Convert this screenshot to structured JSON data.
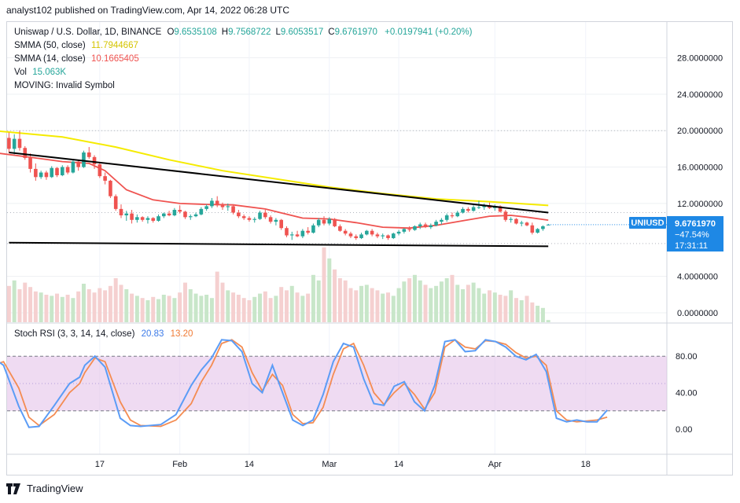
{
  "header": {
    "text": "analyst102 published on TradingView.com, Apr 14, 2022 06:28 UTC"
  },
  "legend": {
    "symbol": "Uniswap / U.S. Dollar, 1D, BINANCE",
    "ohlc": [
      {
        "label": "O",
        "value": "9.6535108"
      },
      {
        "label": "H",
        "value": "9.7568722"
      },
      {
        "label": "L",
        "value": "9.6053517"
      },
      {
        "label": "C",
        "value": "9.6761970"
      }
    ],
    "change": "+0.0197941 (+0.20%)",
    "change_color": "#26a69a",
    "smma50_label": "SMMA (50, close)",
    "smma50_value": "11.7944667",
    "smma50_color": "#f0e000",
    "smma14_label": "SMMA (14, close)",
    "smma14_value": "10.1665405",
    "smma14_color": "#ef5350",
    "vol_label": "Vol",
    "vol_value": "15.063K",
    "vol_color": "#26a69a",
    "moving_label": "MOVING: Invalid Symbol"
  },
  "price_badge": {
    "symbol": "UNIUSD",
    "price": "9.6761970",
    "pct": "−47.54%",
    "countdown": "17:31:11",
    "color": "#1e88e5"
  },
  "stoch": {
    "label": "Stoch RSI (3, 3, 14, 14, close)",
    "k_value": "20.83",
    "d_value": "13.20",
    "k_color": "#5b9cf6",
    "d_color": "#f48c52"
  },
  "footer": {
    "brand": "TradingView"
  },
  "chart_data": {
    "type": "candlestick",
    "price_axis_ticks": [
      "28.0000000",
      "24.0000000",
      "20.0000000",
      "16.0000000",
      "12.0000000",
      "4.0000000",
      "0.0000000"
    ],
    "price_axis_values": [
      28,
      24,
      20,
      16,
      12,
      4,
      0
    ],
    "stoch_axis_ticks": [
      "80.00",
      "40.00",
      "0.00"
    ],
    "stoch_axis_values": [
      80,
      40,
      0
    ],
    "x_ticks": [
      "17",
      "Feb",
      "14",
      "Mar",
      "14",
      "Apr",
      "18"
    ],
    "x_tick_days": [
      17,
      32,
      45,
      60,
      73,
      91,
      108
    ],
    "ohlc": [
      [
        0,
        19.2,
        19.8,
        17.6,
        18.0
      ],
      [
        1,
        18.0,
        19.6,
        17.4,
        19.1
      ],
      [
        2,
        19.1,
        20.0,
        17.8,
        18.1
      ],
      [
        3,
        18.1,
        18.3,
        16.8,
        17.0
      ],
      [
        4,
        17.0,
        17.5,
        15.4,
        15.8
      ],
      [
        5,
        15.8,
        16.4,
        14.5,
        14.9
      ],
      [
        6,
        14.9,
        15.6,
        14.7,
        15.4
      ],
      [
        7,
        15.4,
        15.6,
        14.6,
        14.9
      ],
      [
        8,
        14.9,
        16.1,
        14.8,
        15.9
      ],
      [
        9,
        15.9,
        16.0,
        14.9,
        15.1
      ],
      [
        10,
        15.1,
        16.2,
        15.0,
        16.0
      ],
      [
        11,
        16.0,
        16.2,
        15.2,
        15.4
      ],
      [
        12,
        15.4,
        16.8,
        15.3,
        16.6
      ],
      [
        13,
        16.6,
        16.8,
        15.6,
        16.0
      ],
      [
        14,
        16.0,
        17.8,
        15.9,
        17.6
      ],
      [
        15,
        17.6,
        18.2,
        16.9,
        17.1
      ],
      [
        16,
        17.1,
        17.3,
        15.8,
        16.3
      ],
      [
        17,
        16.3,
        16.5,
        14.8,
        15.0
      ],
      [
        18,
        15.0,
        15.4,
        14.1,
        14.5
      ],
      [
        19,
        14.5,
        14.6,
        12.6,
        12.8
      ],
      [
        20,
        12.8,
        13.0,
        11.2,
        11.4
      ],
      [
        21,
        11.4,
        11.9,
        10.4,
        10.7
      ],
      [
        22,
        10.7,
        11.2,
        10.1,
        10.9
      ],
      [
        23,
        10.9,
        11.3,
        9.8,
        10.2
      ],
      [
        24,
        10.2,
        10.8,
        9.9,
        10.5
      ],
      [
        25,
        10.5,
        10.6,
        10.0,
        10.2
      ],
      [
        26,
        10.2,
        10.6,
        9.8,
        10.4
      ],
      [
        27,
        10.4,
        10.5,
        9.9,
        10.1
      ],
      [
        28,
        10.1,
        10.8,
        10.0,
        10.6
      ],
      [
        29,
        10.6,
        11.0,
        10.4,
        10.9
      ],
      [
        30,
        10.9,
        11.2,
        10.6,
        10.7
      ],
      [
        31,
        10.7,
        11.5,
        10.6,
        11.3
      ],
      [
        32,
        11.3,
        11.8,
        10.9,
        11.1
      ],
      [
        33,
        11.1,
        11.2,
        10.3,
        10.5
      ],
      [
        34,
        10.5,
        10.8,
        10.2,
        10.6
      ],
      [
        35,
        10.6,
        11.0,
        10.5,
        10.8
      ],
      [
        36,
        10.8,
        11.6,
        10.7,
        11.4
      ],
      [
        37,
        11.4,
        11.9,
        11.2,
        11.7
      ],
      [
        38,
        11.7,
        12.6,
        11.5,
        12.3
      ],
      [
        39,
        12.3,
        12.8,
        11.6,
        11.8
      ],
      [
        40,
        11.8,
        12.1,
        11.3,
        11.6
      ],
      [
        41,
        11.6,
        12.0,
        11.2,
        11.7
      ],
      [
        42,
        11.7,
        11.9,
        10.8,
        11.0
      ],
      [
        43,
        11.0,
        11.3,
        10.4,
        10.6
      ],
      [
        44,
        10.6,
        10.8,
        10.2,
        10.4
      ],
      [
        45,
        10.4,
        10.6,
        10.0,
        10.2
      ],
      [
        46,
        10.2,
        10.5,
        9.9,
        10.3
      ],
      [
        47,
        10.3,
        11.2,
        10.2,
        11.0
      ],
      [
        48,
        11.0,
        11.3,
        10.3,
        10.5
      ],
      [
        49,
        10.5,
        10.7,
        9.8,
        10.0
      ],
      [
        50,
        10.0,
        10.4,
        9.6,
        10.2
      ],
      [
        51,
        10.2,
        10.3,
        9.1,
        9.3
      ],
      [
        52,
        9.3,
        9.5,
        8.3,
        8.5
      ],
      [
        53,
        8.5,
        8.9,
        8.0,
        8.6
      ],
      [
        54,
        8.6,
        9.0,
        8.3,
        8.4
      ],
      [
        55,
        8.4,
        9.2,
        8.2,
        9.0
      ],
      [
        56,
        9.0,
        9.4,
        8.6,
        8.8
      ],
      [
        57,
        8.8,
        9.8,
        8.7,
        9.6
      ],
      [
        58,
        9.6,
        10.4,
        9.4,
        10.2
      ],
      [
        59,
        10.2,
        10.6,
        9.6,
        9.8
      ],
      [
        60,
        9.8,
        10.5,
        9.6,
        10.3
      ],
      [
        61,
        10.3,
        10.4,
        9.4,
        9.5
      ],
      [
        62,
        9.5,
        9.7,
        8.9,
        9.0
      ],
      [
        63,
        9.0,
        9.2,
        8.5,
        8.7
      ],
      [
        64,
        8.7,
        8.9,
        8.2,
        8.4
      ],
      [
        65,
        8.4,
        8.6,
        8.0,
        8.2
      ],
      [
        66,
        8.2,
        8.8,
        8.1,
        8.6
      ],
      [
        67,
        8.6,
        9.1,
        8.5,
        9.0
      ],
      [
        68,
        9.0,
        9.2,
        8.4,
        8.6
      ],
      [
        69,
        8.6,
        8.8,
        8.2,
        8.4
      ],
      [
        70,
        8.4,
        8.7,
        8.1,
        8.5
      ],
      [
        71,
        8.5,
        8.6,
        8.0,
        8.2
      ],
      [
        72,
        8.2,
        8.8,
        8.1,
        8.7
      ],
      [
        73,
        8.7,
        9.1,
        8.5,
        8.9
      ],
      [
        74,
        8.9,
        9.3,
        8.7,
        9.2
      ],
      [
        75,
        9.2,
        9.5,
        8.9,
        9.1
      ],
      [
        76,
        9.1,
        9.6,
        9.0,
        9.5
      ],
      [
        77,
        9.5,
        9.9,
        9.2,
        9.7
      ],
      [
        78,
        9.7,
        9.9,
        9.3,
        9.4
      ],
      [
        79,
        9.4,
        9.8,
        9.2,
        9.6
      ],
      [
        80,
        9.6,
        10.2,
        9.5,
        10.0
      ],
      [
        81,
        10.0,
        10.4,
        9.7,
        10.2
      ],
      [
        82,
        10.2,
        10.9,
        10.0,
        10.7
      ],
      [
        83,
        10.7,
        11.0,
        10.4,
        10.6
      ],
      [
        84,
        10.6,
        11.2,
        10.5,
        11.0
      ],
      [
        85,
        11.0,
        11.6,
        10.9,
        11.4
      ],
      [
        86,
        11.4,
        11.6,
        11.0,
        11.2
      ],
      [
        87,
        11.2,
        11.8,
        11.1,
        11.6
      ],
      [
        88,
        11.6,
        12.3,
        11.4,
        11.6
      ],
      [
        89,
        11.6,
        12.0,
        11.3,
        11.8
      ],
      [
        90,
        11.8,
        12.1,
        11.4,
        11.5
      ],
      [
        91,
        11.5,
        11.9,
        11.2,
        11.7
      ],
      [
        92,
        11.7,
        11.8,
        11.0,
        11.1
      ],
      [
        93,
        11.1,
        11.3,
        10.0,
        10.2
      ],
      [
        94,
        10.2,
        10.5,
        9.9,
        10.3
      ],
      [
        95,
        10.3,
        10.4,
        9.7,
        9.8
      ],
      [
        96,
        9.8,
        10.1,
        9.5,
        9.9
      ],
      [
        97,
        9.9,
        10.0,
        9.5,
        9.6
      ],
      [
        98,
        9.6,
        9.9,
        8.6,
        8.8
      ],
      [
        99,
        8.8,
        9.3,
        8.7,
        9.2
      ],
      [
        100,
        9.2,
        9.6,
        9.0,
        9.5
      ],
      [
        101,
        9.65,
        9.76,
        9.61,
        9.68
      ]
    ],
    "volume": [
      33,
      38,
      30,
      36,
      32,
      28,
      27,
      25,
      24,
      26,
      23,
      25,
      22,
      28,
      35,
      30,
      27,
      31,
      29,
      33,
      40,
      34,
      30,
      26,
      24,
      22,
      20,
      23,
      21,
      25,
      24,
      22,
      27,
      36,
      30,
      26,
      24,
      25,
      22,
      46,
      36,
      29,
      27,
      25,
      22,
      20,
      23,
      26,
      28,
      22,
      24,
      32,
      29,
      33,
      27,
      24,
      26,
      43,
      38,
      68,
      58,
      48,
      40,
      38,
      31,
      29,
      33,
      34,
      31,
      29,
      26,
      27,
      24,
      31,
      37,
      40,
      43,
      38,
      34,
      31,
      33,
      37,
      40,
      43,
      34,
      30,
      34,
      36,
      31,
      26,
      29,
      27,
      25,
      24,
      29,
      22,
      20,
      24,
      18,
      15,
      13,
      2
    ],
    "smma50": [
      [
        -3,
        20.0
      ],
      [
        10,
        19.3
      ],
      [
        20,
        18.2
      ],
      [
        30,
        16.8
      ],
      [
        40,
        15.6
      ],
      [
        50,
        14.7
      ],
      [
        60,
        13.8
      ],
      [
        70,
        13.1
      ],
      [
        80,
        12.5
      ],
      [
        90,
        12.2
      ],
      [
        101,
        11.79
      ]
    ],
    "smma14": [
      [
        -3,
        17.6
      ],
      [
        5,
        17.0
      ],
      [
        10,
        16.6
      ],
      [
        15,
        16.4
      ],
      [
        18,
        15.6
      ],
      [
        22,
        13.5
      ],
      [
        27,
        12.4
      ],
      [
        32,
        12.0
      ],
      [
        37,
        11.9
      ],
      [
        42,
        11.85
      ],
      [
        48,
        11.4
      ],
      [
        55,
        10.4
      ],
      [
        60,
        10.3
      ],
      [
        65,
        9.9
      ],
      [
        70,
        9.4
      ],
      [
        75,
        9.3
      ],
      [
        80,
        9.6
      ],
      [
        85,
        10.1
      ],
      [
        90,
        10.6
      ],
      [
        94,
        10.7
      ],
      [
        97,
        10.5
      ],
      [
        101,
        10.17
      ]
    ],
    "trendline_upper": [
      [
        0,
        17.6
      ],
      [
        101,
        11.0
      ]
    ],
    "trendline_lower": [
      [
        0,
        7.7
      ],
      [
        101,
        7.3
      ]
    ],
    "stoch_k": [
      [
        -3,
        78
      ],
      [
        -1,
        70
      ],
      [
        2,
        25
      ],
      [
        4,
        2
      ],
      [
        6,
        3
      ],
      [
        9,
        26
      ],
      [
        12,
        50
      ],
      [
        14,
        57
      ],
      [
        15,
        70
      ],
      [
        17,
        80
      ],
      [
        19,
        68
      ],
      [
        22,
        12
      ],
      [
        24,
        4
      ],
      [
        26,
        3
      ],
      [
        30,
        5
      ],
      [
        33,
        16
      ],
      [
        36,
        48
      ],
      [
        38,
        65
      ],
      [
        40,
        78
      ],
      [
        42,
        98
      ],
      [
        44,
        97
      ],
      [
        46,
        85
      ],
      [
        48,
        50
      ],
      [
        50,
        40
      ],
      [
        52,
        70
      ],
      [
        54,
        40
      ],
      [
        56,
        10
      ],
      [
        58,
        4
      ],
      [
        60,
        10
      ],
      [
        62,
        38
      ],
      [
        64,
        74
      ],
      [
        66,
        94
      ],
      [
        68,
        90
      ],
      [
        70,
        55
      ],
      [
        72,
        28
      ],
      [
        74,
        26
      ],
      [
        76,
        47
      ],
      [
        78,
        52
      ],
      [
        80,
        30
      ],
      [
        82,
        20
      ],
      [
        84,
        48
      ],
      [
        86,
        96
      ],
      [
        88,
        98
      ],
      [
        90,
        85
      ],
      [
        92,
        86
      ],
      [
        94,
        98
      ],
      [
        96,
        96
      ],
      [
        98,
        90
      ],
      [
        100,
        80
      ],
      [
        102,
        76
      ],
      [
        104,
        82
      ],
      [
        106,
        63
      ],
      [
        108,
        12
      ],
      [
        110,
        8
      ],
      [
        112,
        10
      ],
      [
        114,
        8
      ],
      [
        116,
        8
      ],
      [
        118,
        20.83
      ]
    ],
    "stoch_d": [
      [
        -3,
        70
      ],
      [
        -1,
        74
      ],
      [
        2,
        45
      ],
      [
        4,
        13
      ],
      [
        6,
        4
      ],
      [
        9,
        16
      ],
      [
        12,
        40
      ],
      [
        14,
        50
      ],
      [
        15,
        62
      ],
      [
        17,
        78
      ],
      [
        19,
        74
      ],
      [
        22,
        30
      ],
      [
        24,
        10
      ],
      [
        26,
        4
      ],
      [
        30,
        3
      ],
      [
        33,
        10
      ],
      [
        36,
        28
      ],
      [
        38,
        52
      ],
      [
        40,
        70
      ],
      [
        42,
        94
      ],
      [
        44,
        98
      ],
      [
        46,
        90
      ],
      [
        48,
        62
      ],
      [
        50,
        42
      ],
      [
        52,
        60
      ],
      [
        54,
        48
      ],
      [
        56,
        16
      ],
      [
        58,
        6
      ],
      [
        60,
        7
      ],
      [
        62,
        24
      ],
      [
        64,
        60
      ],
      [
        66,
        88
      ],
      [
        68,
        94
      ],
      [
        70,
        70
      ],
      [
        72,
        40
      ],
      [
        74,
        27
      ],
      [
        76,
        40
      ],
      [
        78,
        50
      ],
      [
        80,
        38
      ],
      [
        82,
        22
      ],
      [
        84,
        40
      ],
      [
        86,
        90
      ],
      [
        88,
        98
      ],
      [
        90,
        90
      ],
      [
        92,
        88
      ],
      [
        94,
        97
      ],
      [
        96,
        96
      ],
      [
        98,
        93
      ],
      [
        100,
        84
      ],
      [
        102,
        78
      ],
      [
        104,
        80
      ],
      [
        106,
        70
      ],
      [
        108,
        20
      ],
      [
        110,
        10
      ],
      [
        112,
        8
      ],
      [
        114,
        9
      ],
      [
        116,
        10
      ],
      [
        118,
        13.2
      ]
    ],
    "stoch_band": [
      20,
      80
    ]
  }
}
